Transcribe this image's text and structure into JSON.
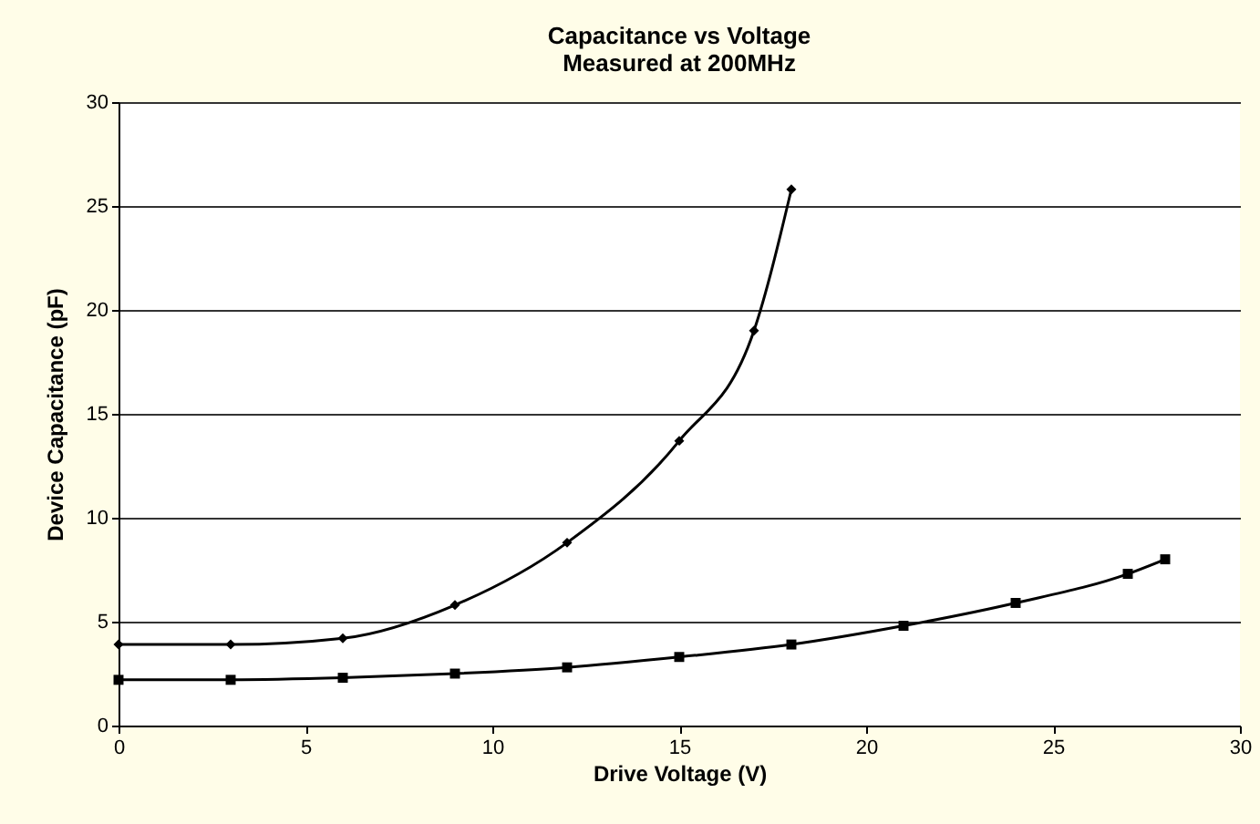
{
  "chart_data": {
    "type": "line",
    "title": "Capacitance vs Voltage",
    "subtitle": "Measured at 200MHz",
    "xlabel": "Drive Voltage (V)",
    "ylabel": "Device Capacitance (pF)",
    "xlim": [
      0,
      30
    ],
    "xticks": [
      0,
      5,
      10,
      15,
      20,
      25,
      30
    ],
    "ylim": [
      0,
      30
    ],
    "yticks": [
      0,
      5,
      10,
      15,
      20,
      25,
      30
    ],
    "grid": "y",
    "line_style": "solid",
    "series": [
      {
        "color": "#000000",
        "marker": "diamond",
        "x": [
          0,
          3,
          6,
          9,
          12,
          15,
          17,
          18
        ],
        "values": [
          3.9,
          3.9,
          4.2,
          5.8,
          8.8,
          13.7,
          19,
          25.8
        ]
      },
      {
        "color": "#000000",
        "marker": "square",
        "x": [
          0,
          3,
          6,
          9,
          12,
          15,
          18,
          21,
          24,
          27,
          28
        ],
        "values": [
          2.2,
          2.2,
          2.3,
          2.5,
          2.8,
          3.3,
          3.9,
          4.8,
          5.9,
          7.3,
          8.0
        ]
      }
    ]
  }
}
